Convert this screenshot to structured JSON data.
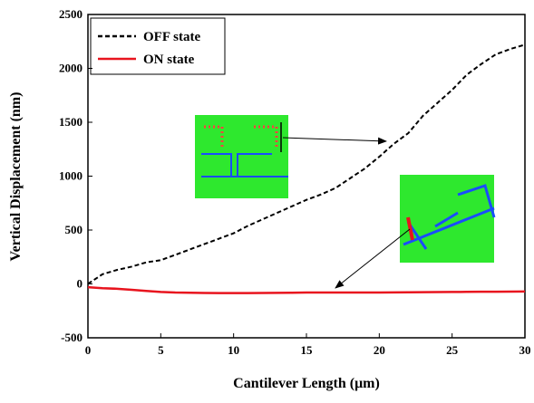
{
  "chart_data": {
    "type": "line",
    "xlabel": "Cantilever Length (μm)",
    "ylabel": "Vertical Displacement (nm)",
    "x": [
      0,
      1,
      2,
      3,
      4,
      5,
      6,
      7,
      8,
      9,
      10,
      11,
      12,
      13,
      14,
      15,
      16,
      17,
      18,
      19,
      20,
      21,
      22,
      23,
      24,
      25,
      26,
      27,
      28,
      29,
      30
    ],
    "series": [
      {
        "name": "OFF state",
        "color": "#000000",
        "dash": true,
        "values": [
          0,
          90,
          130,
          160,
          200,
          220,
          270,
          320,
          370,
          420,
          470,
          540,
          600,
          660,
          720,
          780,
          830,
          890,
          980,
          1070,
          1180,
          1300,
          1400,
          1560,
          1680,
          1800,
          1940,
          2040,
          2130,
          2180,
          2220
        ]
      },
      {
        "name": "ON state",
        "color": "#e8141e",
        "dash": false,
        "values": [
          -30,
          -40,
          -45,
          -55,
          -65,
          -75,
          -80,
          -82,
          -84,
          -85,
          -85,
          -85,
          -84,
          -83,
          -82,
          -80,
          -80,
          -80,
          -80,
          -80,
          -80,
          -79,
          -78,
          -77,
          -76,
          -75,
          -74,
          -73,
          -72,
          -71,
          -70
        ]
      }
    ],
    "xlim": [
      0,
      30
    ],
    "xticks": [
      0,
      5,
      10,
      15,
      20,
      25,
      30
    ],
    "ylim": [
      -500,
      2500
    ],
    "yticks": [
      -500,
      0,
      500,
      1000,
      1500,
      2000,
      2500
    ]
  }
}
